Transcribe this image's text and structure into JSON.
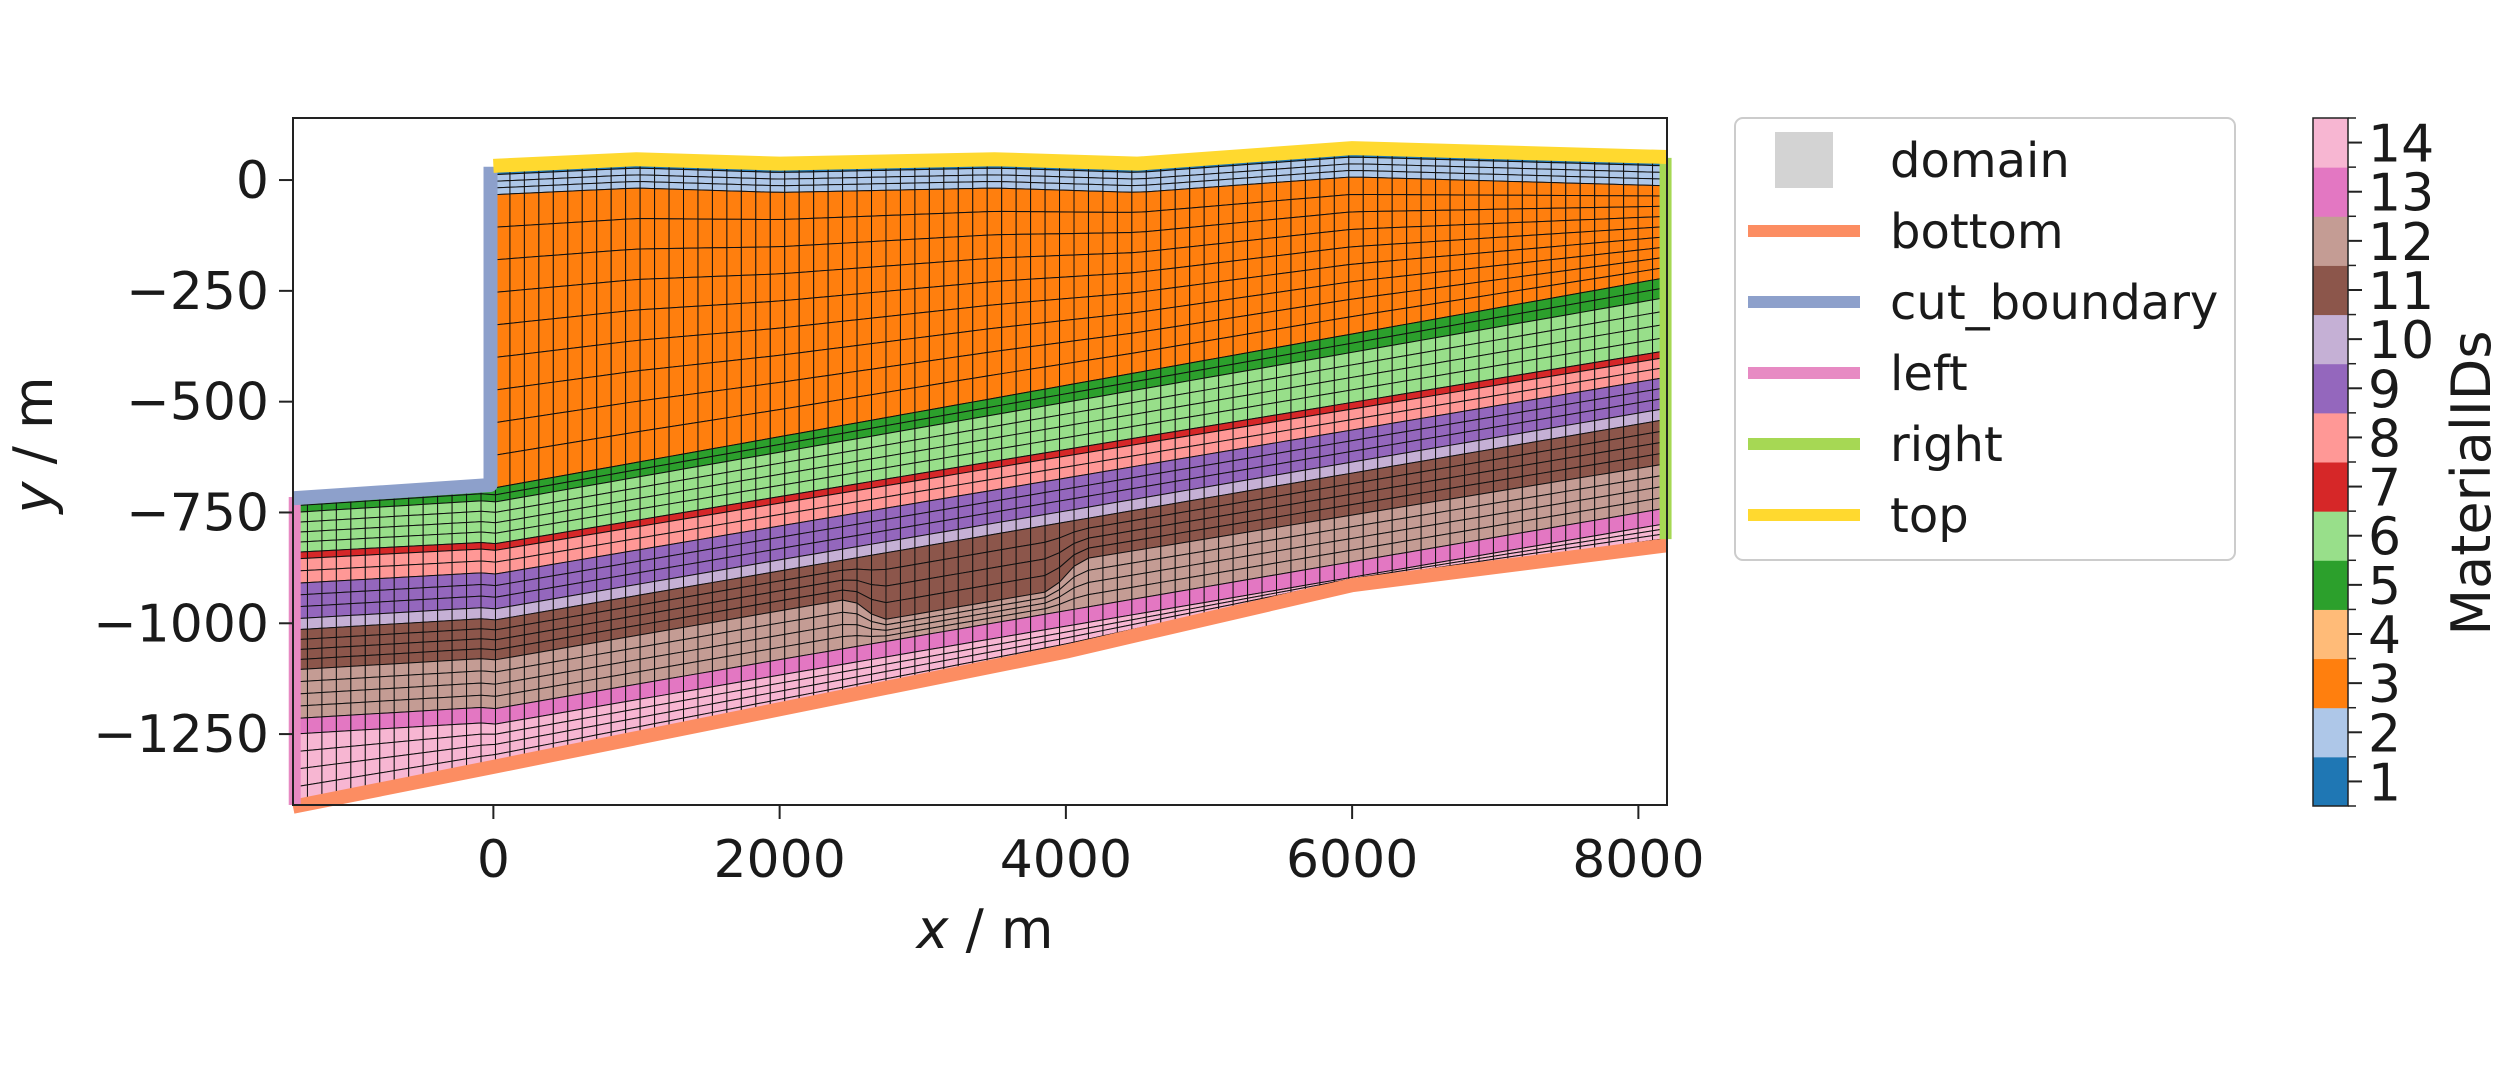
{
  "chart_data": {
    "type": "mesh",
    "xlabel_var": "x",
    "xlabel_unit": " / m",
    "ylabel_var": "y",
    "ylabel_unit": " / m",
    "xlim": [
      -1400,
      8200
    ],
    "ylim": [
      -1410,
      140
    ],
    "xticks": [
      0,
      2000,
      4000,
      6000,
      8000
    ],
    "xtick_labels": [
      "0",
      "2000",
      "4000",
      "6000",
      "8000"
    ],
    "yticks": [
      0,
      -250,
      -500,
      -750,
      -1000,
      -1250
    ],
    "ytick_labels": [
      "0",
      "−250",
      "−500",
      "−750",
      "−1000",
      "−1250"
    ],
    "mesh": {
      "nx": 95,
      "cut_boundary_x": 0,
      "top_surface": [
        [
          0,
          20
        ],
        [
          1000,
          35
        ],
        [
          2000,
          25
        ],
        [
          3500,
          35
        ],
        [
          4500,
          25
        ],
        [
          6000,
          60
        ],
        [
          8200,
          40
        ]
      ],
      "layers": [
        {
          "material": 1,
          "thickness": 8,
          "rows": 1
        },
        {
          "material": 2,
          "thickness": 45,
          "rows": 3
        },
        {
          "material": 3,
          "from_cut": true,
          "rows": 9
        },
        {
          "material": 5,
          "thickness": [
            [
              -1400,
              30
            ],
            [
              2000,
              35
            ],
            [
              8200,
              45
            ]
          ],
          "rows": 2
        },
        {
          "material": 6,
          "thickness": [
            [
              -1400,
              90
            ],
            [
              2000,
              100
            ],
            [
              8200,
              120
            ]
          ],
          "rows": 4
        },
        {
          "material": 7,
          "thickness": 15,
          "rows": 1
        },
        {
          "material": 8,
          "thickness": [
            [
              -1400,
              55
            ],
            [
              8200,
              45
            ]
          ],
          "rows": 2
        },
        {
          "material": 9,
          "thickness": [
            [
              -1400,
              80
            ],
            [
              8200,
              70
            ]
          ],
          "rows": 3
        },
        {
          "material": 10,
          "thickness": 25,
          "rows": 1
        },
        {
          "material": 11,
          "thickness": [
            [
              -1400,
              90
            ],
            [
              2500,
              90
            ],
            [
              2700,
              150
            ],
            [
              3900,
              150
            ],
            [
              4100,
              90
            ],
            [
              8200,
              100
            ]
          ],
          "rows": 4
        },
        {
          "material": 12,
          "thickness": [
            [
              -1400,
              110
            ],
            [
              2500,
              110
            ],
            [
              2700,
              50
            ],
            [
              3900,
              50
            ],
            [
              4100,
              110
            ],
            [
              8200,
              100
            ]
          ],
          "rows": 4
        },
        {
          "material": 13,
          "thickness": 35,
          "rows": 1
        },
        {
          "material": 14,
          "to_bottom": true,
          "rows": 4
        }
      ],
      "step_points": [
        [
          -1400,
          -720
        ],
        [
          0,
          -690
        ]
      ],
      "bottom_points": [
        [
          -1400,
          -1410
        ],
        [
          0,
          -1320
        ],
        [
          2000,
          -1190
        ],
        [
          4000,
          -1060
        ],
        [
          6000,
          -910
        ],
        [
          8200,
          -820
        ]
      ]
    },
    "legend": {
      "location": "outside-right",
      "entries": [
        {
          "name": "domain",
          "color": "#d3d3d3",
          "style": "patch"
        },
        {
          "name": "bottom",
          "color": "#fc8d62",
          "style": "line"
        },
        {
          "name": "cut_boundary",
          "color": "#8da0cb",
          "style": "line"
        },
        {
          "name": "left",
          "color": "#e78ac3",
          "style": "line"
        },
        {
          "name": "right",
          "color": "#a6d854",
          "style": "line"
        },
        {
          "name": "top",
          "color": "#ffd92f",
          "style": "line"
        }
      ]
    },
    "colorbar": {
      "label": "MaterialIDs",
      "ids": [
        1,
        2,
        3,
        4,
        5,
        6,
        7,
        8,
        9,
        10,
        11,
        12,
        13,
        14
      ],
      "tick_labels": [
        "1",
        "2",
        "3",
        "4",
        "5",
        "6",
        "7",
        "8",
        "9",
        "10",
        "11",
        "12",
        "13",
        "14"
      ],
      "colors": [
        "#1f77b4",
        "#aec7e8",
        "#ff7f0e",
        "#ffbb78",
        "#2ca02c",
        "#98df8a",
        "#d62728",
        "#ff9896",
        "#9467bd",
        "#c5b0d5",
        "#8c564b",
        "#c49c94",
        "#e377c2",
        "#f7b6d2"
      ]
    }
  }
}
